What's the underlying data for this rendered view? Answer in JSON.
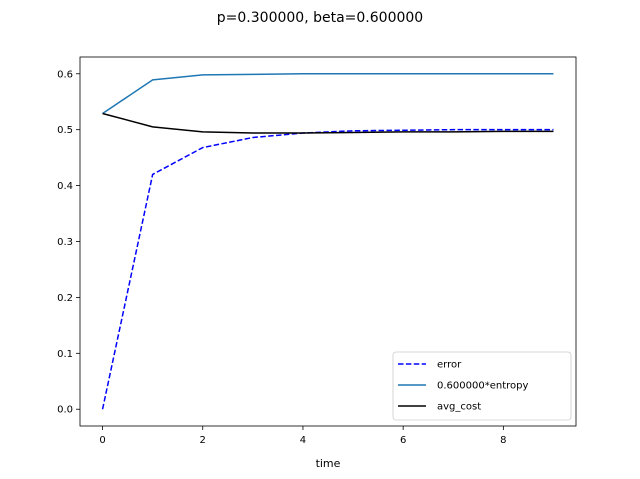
{
  "chart_data": {
    "type": "line",
    "title": "p=0.300000, beta=0.600000",
    "xlabel": "time",
    "ylabel": "",
    "xlim": [
      -0.45,
      9.45
    ],
    "ylim": [
      -0.03,
      0.63
    ],
    "xticks": [
      0,
      2,
      4,
      6,
      8
    ],
    "yticks": [
      0.0,
      0.1,
      0.2,
      0.3,
      0.4,
      0.5,
      0.6
    ],
    "xtick_labels": [
      "0",
      "2",
      "4",
      "6",
      "8"
    ],
    "ytick_labels": [
      "0.0",
      "0.1",
      "0.2",
      "0.3",
      "0.4",
      "0.5",
      "0.6"
    ],
    "grid": false,
    "legend_position": "lower-right",
    "x": [
      0,
      1,
      2,
      3,
      4,
      5,
      6,
      7,
      8,
      9
    ],
    "series": [
      {
        "name": "error",
        "color": "#0000ff",
        "style": "dashed",
        "values": [
          0.0,
          0.42,
          0.468,
          0.486,
          0.494,
          0.498,
          0.499,
          0.5,
          0.5,
          0.5
        ]
      },
      {
        "name": "0.600000*entropy",
        "color": "#1f77b4",
        "style": "solid",
        "values": [
          0.529,
          0.589,
          0.598,
          0.599,
          0.6,
          0.6,
          0.6,
          0.6,
          0.6,
          0.6
        ]
      },
      {
        "name": "avg_cost",
        "color": "#000000",
        "style": "solid",
        "values": [
          0.529,
          0.505,
          0.496,
          0.494,
          0.494,
          0.495,
          0.496,
          0.496,
          0.497,
          0.497
        ]
      }
    ]
  }
}
